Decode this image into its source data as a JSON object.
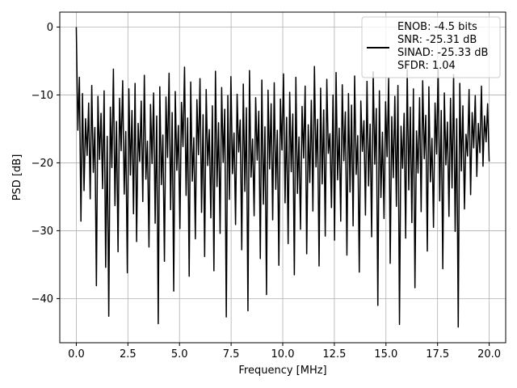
{
  "chart_data": {
    "type": "line",
    "title": "",
    "xlabel": "Frequency [MHz]",
    "ylabel": "PSD [dB]",
    "xlim": [
      -0.8,
      20.8
    ],
    "ylim": [
      -46.5,
      2.2
    ],
    "xticks": [
      0.0,
      2.5,
      5.0,
      7.5,
      10.0,
      12.5,
      15.0,
      17.5,
      20.0
    ],
    "xtick_labels": [
      "0.0",
      "2.5",
      "5.0",
      "7.5",
      "10.0",
      "12.5",
      "15.0",
      "17.5",
      "20.0"
    ],
    "yticks": [
      0,
      -10,
      -20,
      -30,
      -40
    ],
    "ytick_labels": [
      "0",
      "−10",
      "−20",
      "−30",
      "−40"
    ],
    "grid": true,
    "legend_position": "top-right",
    "series": [
      {
        "name": "ENOB: -4.5 bits\nSNR: -25.31 dB\nSINAD: -25.33 dB\nSFDR: 1.04",
        "legend_lines": [
          "ENOB: -4.5 bits",
          "SNR: -25.31 dB",
          "SINAD: -25.33 dB",
          "SFDR: 1.04"
        ],
        "color": "#000000",
        "x_start": 0.0,
        "x_end": 20.0,
        "values": [
          0.0,
          -15.2,
          -7.4,
          -28.6,
          -9.8,
          -24.1,
          -13.5,
          -18.9,
          -11.2,
          -25.3,
          -8.6,
          -21.4,
          -14.8,
          -38.1,
          -10.2,
          -19.5,
          -12.7,
          -23.8,
          -9.4,
          -35.4,
          -16.1,
          -42.6,
          -11.8,
          -20.7,
          -6.2,
          -26.3,
          -13.9,
          -33.1,
          -10.5,
          -18.2,
          -7.9,
          -24.6,
          -15.4,
          -36.2,
          -9.1,
          -21.8,
          -12.3,
          -27.5,
          -8.3,
          -31.6,
          -14.2,
          -19.8,
          -10.9,
          -25.7,
          -7.1,
          -22.4,
          -16.8,
          -32.4,
          -11.4,
          -20.1,
          -9.7,
          -28.9,
          -13.1,
          -43.7,
          -8.8,
          -23.2,
          -15.9,
          -34.5,
          -10.3,
          -19.2,
          -6.8,
          -26.9,
          -12.6,
          -38.9,
          -9.5,
          -21.1,
          -14.5,
          -29.7,
          -11.1,
          -17.6,
          -5.9,
          -24.8,
          -13.4,
          -36.7,
          -8.1,
          -22.7,
          -16.3,
          -31.2,
          -10.7,
          -18.8,
          -7.6,
          -27.3,
          -12.9,
          -33.8,
          -9.2,
          -20.4,
          -15.1,
          -28.1,
          -11.6,
          -35.9,
          -6.5,
          -23.5,
          -14.1,
          -30.4,
          -8.9,
          -19.9,
          -12.1,
          -42.7,
          -10.1,
          -25.4,
          -7.3,
          -21.6,
          -15.6,
          -29.1,
          -9.9,
          -18.4,
          -13.7,
          -32.8,
          -8.4,
          -24.2,
          -11.9,
          -41.8,
          -6.4,
          -22.1,
          -16.5,
          -27.8,
          -10.4,
          -19.6,
          -12.4,
          -34.1,
          -7.8,
          -26.1,
          -14.7,
          -39.4,
          -9.3,
          -20.9,
          -11.3,
          -28.4,
          -8.2,
          -23.9,
          -15.2,
          -35.1,
          -10.6,
          -18.1,
          -6.9,
          -25.9,
          -13.3,
          -31.9,
          -9.6,
          -21.3,
          -12.8,
          -36.5,
          -7.4,
          -24.5,
          -16.2,
          -29.8,
          -11.7,
          -19.3,
          -8.7,
          -33.4,
          -14.4,
          -22.9,
          -10.8,
          -27.1,
          -5.8,
          -20.6,
          -13.6,
          -35.2,
          -9.0,
          -23.1,
          -12.2,
          -30.8,
          -7.7,
          -18.6,
          -15.7,
          -26.6,
          -10.0,
          -31.4,
          -6.7,
          -22.5,
          -14.9,
          -28.6,
          -8.5,
          -19.7,
          -12.5,
          -33.6,
          -9.8,
          -24.3,
          -11.5,
          -29.3,
          -7.2,
          -21.7,
          -16.0,
          -36.1,
          -10.9,
          -18.3,
          -13.8,
          -27.7,
          -8.0,
          -23.4,
          -14.3,
          -30.9,
          -6.6,
          -20.2,
          -12.0,
          -41.0,
          -9.4,
          -25.1,
          -15.5,
          -28.2,
          -11.0,
          -19.1,
          -7.5,
          -34.8,
          -13.2,
          -22.2,
          -10.2,
          -26.4,
          -8.6,
          -43.8,
          -14.6,
          -20.8,
          -12.7,
          -31.1,
          -6.3,
          -24.0,
          -11.8,
          -28.8,
          -9.1,
          -38.4,
          -15.3,
          -21.5,
          -10.4,
          -27.2,
          -7.9,
          -19.4,
          -13.0,
          -33.0,
          -8.8,
          -22.8,
          -16.4,
          -29.5,
          -11.2,
          -18.7,
          -6.1,
          -25.6,
          -12.3,
          -35.6,
          -9.7,
          -20.3,
          -14.0,
          -27.9,
          -10.5,
          -23.7,
          -7.0,
          -30.1,
          -13.5,
          -44.2,
          -8.3,
          -21.2,
          -11.6,
          -26.8,
          -15.8,
          -19.0,
          -9.2,
          -24.7,
          -12.6,
          -17.8,
          -10.1,
          -22.0,
          -14.2,
          -18.5,
          -8.7,
          -20.5,
          -13.1,
          -16.9,
          -11.3,
          -19.8
        ]
      }
    ]
  }
}
